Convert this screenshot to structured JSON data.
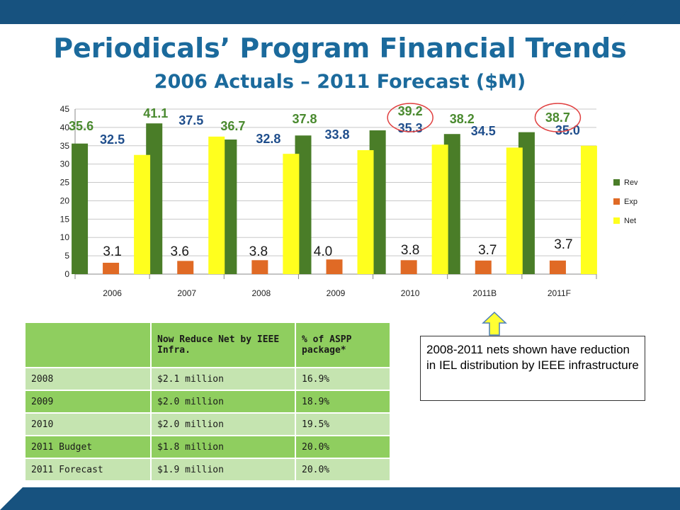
{
  "slide": {
    "title": "Periodicals’ Program Financial Trends",
    "subtitle": "2006 Actuals – 2011 Forecast ($M)",
    "page_number": "",
    "colors": {
      "brand": "#17527f",
      "title": "#1b6a9c",
      "rev": "#4a7d28",
      "exp": "#e06a25",
      "net": "#ffff1e",
      "rev_label": "#4a8a2f",
      "net_label": "#1f4e8c",
      "highlight_ring": "#e04040"
    }
  },
  "chart_data": {
    "type": "bar",
    "categories": [
      "2006",
      "2007",
      "2008",
      "2009",
      "2010",
      "2011B",
      "2011F"
    ],
    "series": [
      {
        "name": "Rev.",
        "values": [
          35.6,
          41.1,
          36.7,
          37.8,
          39.2,
          38.2,
          38.7
        ],
        "labels": [
          "35.6",
          "41.1",
          "36.7",
          "37.8",
          "39.2",
          "38.2",
          "38.7"
        ]
      },
      {
        "name": "Exp.",
        "values": [
          3.1,
          3.6,
          3.8,
          4.0,
          3.8,
          3.7,
          3.7
        ],
        "labels": [
          "3.1",
          "3.6",
          "3.8",
          "4.0",
          "3.8",
          "3.7",
          "3.7"
        ]
      },
      {
        "name": "Net",
        "values": [
          32.5,
          37.5,
          32.8,
          33.8,
          35.3,
          34.5,
          35.0
        ],
        "labels": [
          "32.5",
          "37.5",
          "32.8",
          "33.8",
          "35.3",
          "34.5",
          "35.0"
        ]
      }
    ],
    "yticks": [
      "0",
      "5",
      "10",
      "15",
      "20",
      "25",
      "30",
      "35",
      "40",
      "45"
    ],
    "ylim": [
      0,
      45
    ],
    "grid": true,
    "legend_position": "right",
    "highlighted_categories": [
      "2010",
      "2011F"
    ]
  },
  "table": {
    "headers": [
      "",
      "Now Reduce Net by IEEE Infra.",
      "% of ASPP package*"
    ],
    "rows": [
      [
        "2008",
        "$2.1 million",
        "16.9%"
      ],
      [
        "2009",
        "$2.0 million",
        "18.9%"
      ],
      [
        "2010",
        "$2.0 million",
        "19.5%"
      ],
      [
        "2011 Budget",
        "$1.8 million",
        "20.0%"
      ],
      [
        "2011 Forecast",
        "$1.9 million",
        "20.0%"
      ]
    ]
  },
  "callout": {
    "text": "2008-2011 nets shown have reduction in IEL distribution by IEEE infrastructure"
  }
}
